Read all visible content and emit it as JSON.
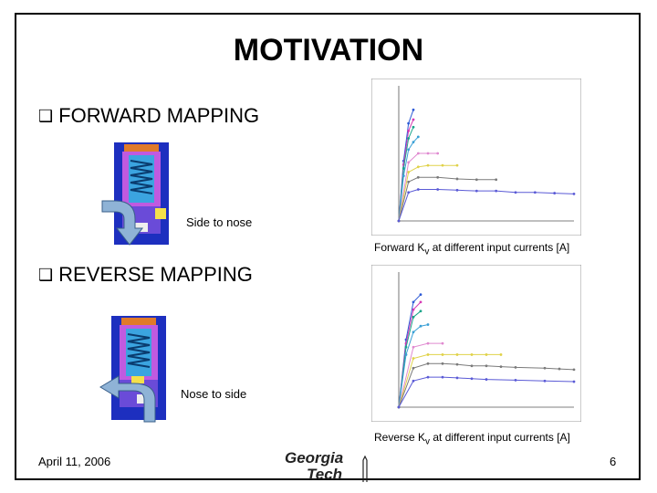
{
  "title": "MOTIVATION",
  "sections": {
    "forward": {
      "heading": "FORWARD MAPPING",
      "diagram_label": "Side to nose",
      "caption_pre": "Forward K",
      "caption_sub": "v",
      "caption_post": " at different input currents [A]"
    },
    "reverse": {
      "heading": "REVERSE MAPPING",
      "diagram_label": "Nose to side",
      "caption_pre": "Reverse K",
      "caption_sub": "v",
      "caption_post": " at different input currents [A]"
    }
  },
  "footer": {
    "date": "April 11, 2006",
    "page": "6",
    "logo_line1": "Georgia",
    "logo_line2": "Tech"
  },
  "bullet_icon": "checkbox-square-icon",
  "arrow_color": "#8fb3d6",
  "chart_data": [
    {
      "type": "line",
      "title": "",
      "series": [
        {
          "values": [
            [
              0,
              0
            ],
            [
              0.05,
              80
            ],
            [
              0.1,
              130
            ],
            [
              0.15,
              148
            ]
          ]
        },
        {
          "values": [
            [
              0,
              0
            ],
            [
              0.05,
              75
            ],
            [
              0.1,
              120
            ],
            [
              0.15,
              135
            ]
          ]
        },
        {
          "values": [
            [
              0,
              0
            ],
            [
              0.05,
              70
            ],
            [
              0.1,
              110
            ],
            [
              0.15,
              125
            ]
          ]
        },
        {
          "values": [
            [
              0,
              0
            ],
            [
              0.05,
              60
            ],
            [
              0.1,
              95
            ],
            [
              0.15,
              105
            ],
            [
              0.2,
              112
            ]
          ]
        },
        {
          "values": [
            [
              0,
              0
            ],
            [
              0.1,
              78
            ],
            [
              0.2,
              90
            ],
            [
              0.3,
              90
            ],
            [
              0.4,
              90
            ]
          ]
        },
        {
          "values": [
            [
              0,
              0
            ],
            [
              0.1,
              65
            ],
            [
              0.2,
              72
            ],
            [
              0.3,
              74
            ],
            [
              0.45,
              74
            ],
            [
              0.6,
              74
            ]
          ]
        },
        {
          "values": [
            [
              0,
              0
            ],
            [
              0.1,
              52
            ],
            [
              0.2,
              58
            ],
            [
              0.4,
              58
            ],
            [
              0.6,
              56
            ],
            [
              0.8,
              55
            ],
            [
              1.0,
              55
            ]
          ]
        },
        {
          "values": [
            [
              0,
              0
            ],
            [
              0.1,
              38
            ],
            [
              0.2,
              42
            ],
            [
              0.4,
              42
            ],
            [
              0.6,
              41
            ],
            [
              0.8,
              40
            ],
            [
              1.0,
              40
            ],
            [
              1.2,
              38
            ],
            [
              1.4,
              38
            ],
            [
              1.6,
              37
            ],
            [
              1.8,
              36
            ]
          ]
        }
      ],
      "xlim": [
        0,
        1.8
      ],
      "ylim": [
        0,
        180
      ]
    },
    {
      "type": "line",
      "title": "",
      "series": [
        {
          "values": [
            [
              0,
              0
            ],
            [
              0.05,
              90
            ],
            [
              0.1,
              140
            ],
            [
              0.15,
              150
            ]
          ]
        },
        {
          "values": [
            [
              0,
              0
            ],
            [
              0.05,
              85
            ],
            [
              0.1,
              130
            ],
            [
              0.15,
              140
            ]
          ]
        },
        {
          "values": [
            [
              0,
              0
            ],
            [
              0.05,
              80
            ],
            [
              0.1,
              120
            ],
            [
              0.15,
              128
            ]
          ]
        },
        {
          "values": [
            [
              0,
              0
            ],
            [
              0.05,
              70
            ],
            [
              0.1,
              100
            ],
            [
              0.15,
              108
            ],
            [
              0.2,
              110
            ]
          ]
        },
        {
          "values": [
            [
              0,
              0
            ],
            [
              0.1,
              80
            ],
            [
              0.2,
              85
            ],
            [
              0.3,
              85
            ]
          ]
        },
        {
          "values": [
            [
              0,
              0
            ],
            [
              0.1,
              65
            ],
            [
              0.2,
              70
            ],
            [
              0.3,
              70
            ],
            [
              0.4,
              70
            ],
            [
              0.5,
              70
            ],
            [
              0.6,
              70
            ],
            [
              0.7,
              70
            ]
          ]
        },
        {
          "values": [
            [
              0,
              0
            ],
            [
              0.1,
              52
            ],
            [
              0.2,
              58
            ],
            [
              0.3,
              58
            ],
            [
              0.4,
              57
            ],
            [
              0.5,
              55
            ],
            [
              0.6,
              55
            ],
            [
              0.7,
              54
            ],
            [
              0.8,
              53
            ],
            [
              1.0,
              52
            ],
            [
              1.1,
              51
            ],
            [
              1.2,
              50
            ]
          ]
        },
        {
          "values": [
            [
              0,
              0
            ],
            [
              0.1,
              35
            ],
            [
              0.2,
              40
            ],
            [
              0.3,
              40
            ],
            [
              0.4,
              39
            ],
            [
              0.5,
              38
            ],
            [
              0.6,
              37
            ],
            [
              0.8,
              36
            ],
            [
              1.0,
              35
            ],
            [
              1.2,
              34
            ]
          ]
        }
      ],
      "xlim": [
        0,
        1.2
      ],
      "ylim": [
        0,
        180
      ]
    }
  ]
}
